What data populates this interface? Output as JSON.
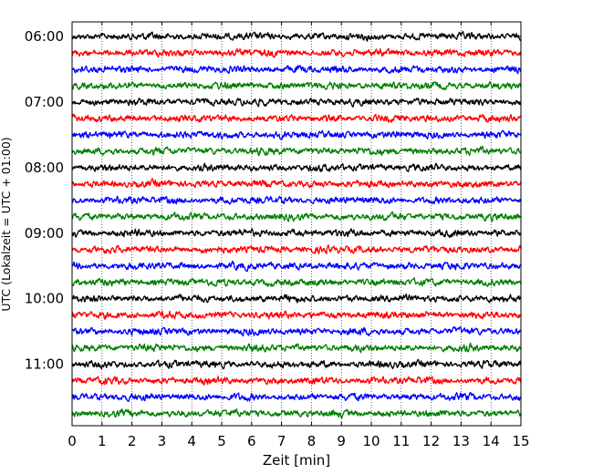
{
  "chart_data": {
    "type": "line",
    "xlabel": "Zeit  [min]",
    "ylabel": "UTC (Lokalzeit = UTC + 01:00)",
    "xlim": [
      0,
      15
    ],
    "x_ticks": [
      0,
      1,
      2,
      3,
      4,
      5,
      6,
      7,
      8,
      9,
      10,
      11,
      12,
      13,
      14,
      15
    ],
    "x_tick_labels": [
      "0",
      "1",
      "2",
      "3",
      "4",
      "5",
      "6",
      "7",
      "8",
      "9",
      "10",
      "11",
      "12",
      "13",
      "14",
      "15"
    ],
    "y_tick_labels": [
      "06:00",
      "07:00",
      "08:00",
      "09:00",
      "10:00",
      "11:00"
    ],
    "grid": "vertical dotted at each minute",
    "trace_interval_min": 15,
    "start_time": "06:00",
    "trace_count": 24,
    "trace_colors": [
      "#000000",
      "#ff0000",
      "#0000ff",
      "#007f00"
    ]
  }
}
